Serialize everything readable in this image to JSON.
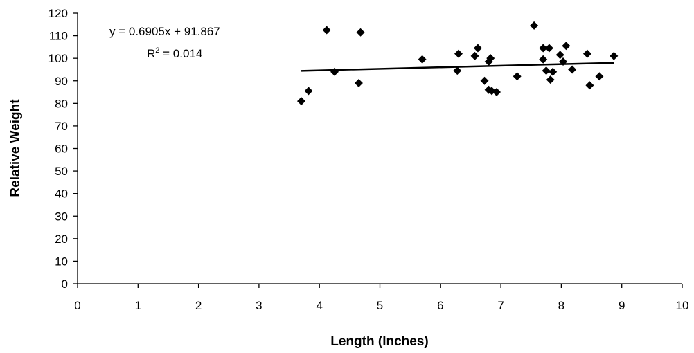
{
  "chart_data": {
    "type": "scatter",
    "xlabel": "Length (Inches)",
    "ylabel": "Relative Weight",
    "xlim": [
      0,
      10
    ],
    "ylim": [
      0,
      120
    ],
    "x_ticks": [
      0,
      1,
      2,
      3,
      4,
      5,
      6,
      7,
      8,
      9,
      10
    ],
    "y_ticks": [
      0,
      10,
      20,
      30,
      40,
      50,
      60,
      70,
      80,
      90,
      100,
      110,
      120
    ],
    "grid": false,
    "marker": "diamond",
    "marker_color": "#000000",
    "points": [
      {
        "x": 3.7,
        "y": 81
      },
      {
        "x": 3.82,
        "y": 85.5
      },
      {
        "x": 4.12,
        "y": 112.5
      },
      {
        "x": 4.25,
        "y": 94
      },
      {
        "x": 4.65,
        "y": 89
      },
      {
        "x": 4.68,
        "y": 111.5
      },
      {
        "x": 5.7,
        "y": 99.5
      },
      {
        "x": 6.28,
        "y": 94.5
      },
      {
        "x": 6.3,
        "y": 102
      },
      {
        "x": 6.57,
        "y": 101
      },
      {
        "x": 6.62,
        "y": 104.5
      },
      {
        "x": 6.73,
        "y": 90
      },
      {
        "x": 6.8,
        "y": 86
      },
      {
        "x": 6.8,
        "y": 98.5
      },
      {
        "x": 6.83,
        "y": 100
      },
      {
        "x": 6.85,
        "y": 85.5
      },
      {
        "x": 6.93,
        "y": 85
      },
      {
        "x": 7.27,
        "y": 92
      },
      {
        "x": 7.55,
        "y": 114.5
      },
      {
        "x": 7.7,
        "y": 104.5
      },
      {
        "x": 7.7,
        "y": 99.5
      },
      {
        "x": 7.75,
        "y": 94.5
      },
      {
        "x": 7.8,
        "y": 104.5
      },
      {
        "x": 7.82,
        "y": 90.5
      },
      {
        "x": 7.86,
        "y": 94
      },
      {
        "x": 7.98,
        "y": 101.5
      },
      {
        "x": 8.03,
        "y": 98.5
      },
      {
        "x": 8.08,
        "y": 105.5
      },
      {
        "x": 8.18,
        "y": 95
      },
      {
        "x": 8.43,
        "y": 102
      },
      {
        "x": 8.47,
        "y": 88
      },
      {
        "x": 8.63,
        "y": 92
      },
      {
        "x": 8.87,
        "y": 101
      }
    ],
    "trendline": {
      "type": "linear",
      "slope": 0.6905,
      "intercept": 91.867,
      "x_range": [
        3.7,
        8.87
      ],
      "color": "#000000"
    },
    "annotations": {
      "equation": "y = 0.6905x + 91.867",
      "r2_prefix": "R",
      "r2_sup": "2",
      "r2_suffix": " = 0.014"
    }
  }
}
